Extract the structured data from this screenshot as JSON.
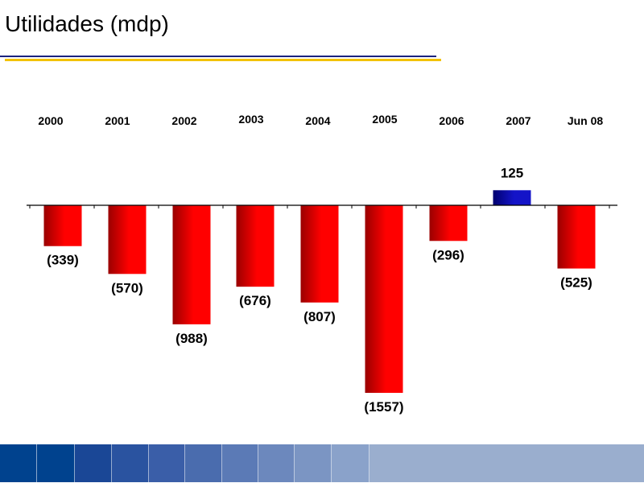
{
  "page": {
    "title": "Utilidades (mdp)"
  },
  "chart_data": {
    "type": "bar",
    "title": "Utilidades (mdp)",
    "xlabel": "",
    "ylabel": "",
    "categories": [
      "2000",
      "2001",
      "2002",
      "2003",
      "2004",
      "2005",
      "2006",
      "2007",
      "Jun 08"
    ],
    "values": [
      -339,
      -570,
      -988,
      -676,
      -807,
      -1557,
      -296,
      125,
      -525
    ],
    "value_labels": [
      "(339)",
      "(570)",
      "(988)",
      "(676)",
      "(807)",
      "(1557)",
      "(296)",
      "125",
      "(525)"
    ],
    "ylim": [
      -1557,
      125
    ],
    "grid": false,
    "legend": "none",
    "colors": {
      "negative": "#ff0000",
      "negative_dark": "#9a0000",
      "positive": "#1414c8",
      "positive_dark": "#00006e"
    }
  },
  "footer": {
    "colors": [
      "#00428e",
      "#00428e",
      "#1a4796",
      "#2a53a0",
      "#3a5ea8",
      "#4a6cae",
      "#5b7ab6",
      "#6c88bd",
      "#7b95c3",
      "#8aa2ca",
      "#9aaece"
    ]
  }
}
